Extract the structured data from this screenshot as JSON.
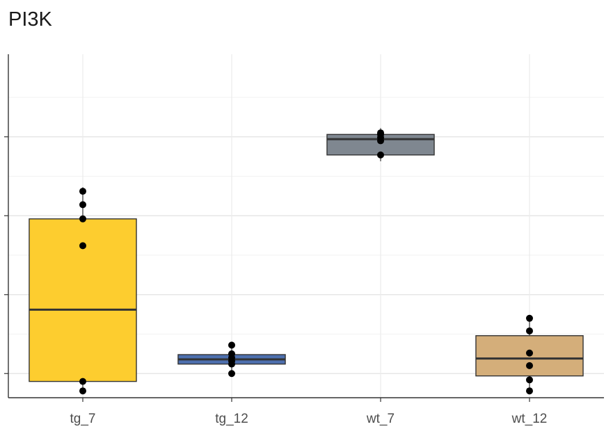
{
  "chart_data": {
    "type": "boxplot",
    "title": "PI3K",
    "xlabel": "",
    "ylabel": "",
    "categories": [
      "tg_7",
      "tg_12",
      "wt_7",
      "wt_12"
    ],
    "y_ticks_unlabeled": [
      0.5,
      1.5,
      2.5,
      3.5
    ],
    "ylim": [
      -0.0,
      4.0
    ],
    "grid": true,
    "boxes": [
      {
        "category": "tg_7",
        "color": "#FDCD2F",
        "whisker_low": 0.28,
        "q1": 0.4,
        "median": 1.31,
        "q3": 2.46,
        "whisker_high": 2.86,
        "points": [
          0.28,
          0.4,
          2.12,
          2.46,
          2.64,
          2.81
        ]
      },
      {
        "category": "tg_12",
        "color": "#4D6FAE",
        "whisker_low": 0.5,
        "q1": 0.62,
        "median": 0.68,
        "q3": 0.74,
        "whisker_high": 0.86,
        "points": [
          0.5,
          0.62,
          0.66,
          0.7,
          0.75,
          0.86
        ]
      },
      {
        "category": "wt_7",
        "color": "#7F8790",
        "whisker_low": 3.19,
        "q1": 3.27,
        "median": 3.47,
        "q3": 3.53,
        "whisker_high": 3.61,
        "points": [
          3.27,
          3.45,
          3.49,
          3.53,
          3.55
        ]
      },
      {
        "category": "wt_12",
        "color": "#D4AE7A",
        "whisker_low": 0.28,
        "q1": 0.47,
        "median": 0.69,
        "q3": 0.98,
        "whisker_high": 1.2,
        "points": [
          0.28,
          0.42,
          0.6,
          0.76,
          1.04,
          1.2
        ]
      }
    ]
  }
}
